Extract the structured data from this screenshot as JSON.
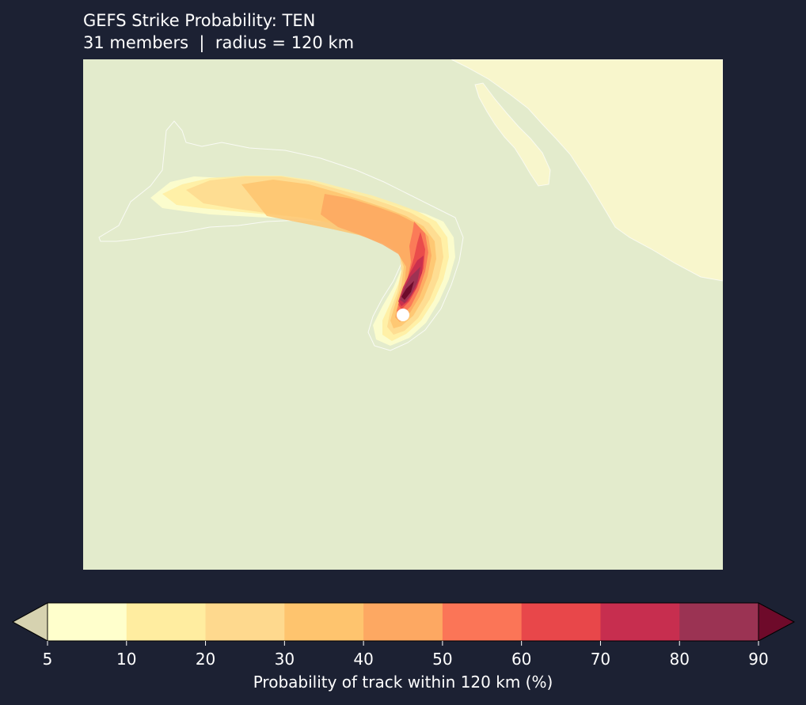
{
  "header": {
    "title": "GEFS Strike Probability: TEN",
    "subtitle": "31 members  |  radius = 120 km"
  },
  "colors": {
    "background": "#1c2133",
    "ocean": "#e3ebcc",
    "land": "#f8f6cc",
    "coastline": "#ffffff",
    "storm_marker": "#ffffff",
    "under_color": "#d6d2b0",
    "over_color": "#6e0a2a"
  },
  "map": {
    "storm_name": "TEN",
    "ensemble_members": 31,
    "radius_km": 120,
    "contour_levels_percent": [
      5,
      10,
      20,
      30,
      40,
      50,
      60,
      70,
      80,
      90
    ],
    "current_position_marker": "white-dot",
    "probability_plume": "arcs from the storm position north, then curves west across the open Pacific"
  },
  "colorbar": {
    "label": "Probability of track within 120 km (%)",
    "ticks": [
      "5",
      "10",
      "20",
      "30",
      "40",
      "50",
      "60",
      "70",
      "80",
      "90"
    ],
    "bins": [
      {
        "from": 5,
        "to": 10,
        "color": "#ffffcc"
      },
      {
        "from": 10,
        "to": 20,
        "color": "#ffeda0"
      },
      {
        "from": 20,
        "to": 30,
        "color": "#fed98e"
      },
      {
        "from": 30,
        "to": 40,
        "color": "#fec46e"
      },
      {
        "from": 40,
        "to": 50,
        "color": "#fda862"
      },
      {
        "from": 50,
        "to": 60,
        "color": "#fb7557"
      },
      {
        "from": 60,
        "to": 70,
        "color": "#e8474a"
      },
      {
        "from": 70,
        "to": 80,
        "color": "#c72e4f"
      },
      {
        "from": 80,
        "to": 90,
        "color": "#9b3353"
      }
    ],
    "extend": "both"
  }
}
